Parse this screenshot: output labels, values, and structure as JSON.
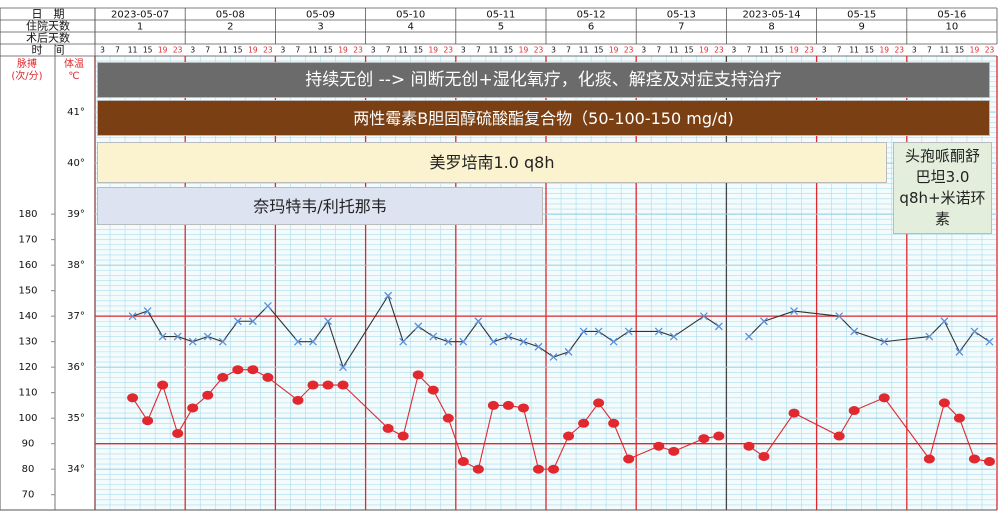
{
  "chart_data": {
    "type": "line",
    "row_labels": [
      "日　期",
      "住院天数",
      "术后天数",
      "时　间"
    ],
    "dates": [
      "2023-05-07",
      "05-08",
      "05-09",
      "05-10",
      "05-11",
      "05-12",
      "05-13",
      "2023-05-14",
      "05-15",
      "05-16"
    ],
    "hospital_days": [
      1,
      2,
      3,
      4,
      5,
      6,
      7,
      8,
      9,
      10
    ],
    "hours": [
      "3",
      "7",
      "11",
      "15",
      "19",
      "23"
    ],
    "pulse_label": [
      "脉搏",
      "(次/分)"
    ],
    "temp_label": [
      "体温",
      "℃"
    ],
    "ylim": [
      33.2,
      42.1
    ],
    "yticks": [
      {
        "value": 41,
        "label": "41°"
      },
      {
        "value": 40,
        "label": "40°"
      },
      {
        "value": 39,
        "label": "39°"
      },
      {
        "value": 38,
        "label": "38°"
      },
      {
        "value": 37,
        "label": "37°"
      },
      {
        "value": 36,
        "label": "36°"
      },
      {
        "value": 35,
        "label": "35°"
      },
      {
        "value": 34,
        "label": "34°"
      }
    ],
    "y2lim": [
      64,
      242
    ],
    "y2ticks": [
      180,
      170,
      160,
      150,
      140,
      130,
      120,
      110,
      100,
      90,
      80,
      70
    ],
    "reference_lines": [
      {
        "axis": "y",
        "value": 37,
        "color": "#e0282e"
      },
      {
        "axis": "y2",
        "value": 90,
        "color": "#e0282e"
      }
    ],
    "x": [
      2,
      3,
      4,
      5,
      6,
      7,
      8,
      9,
      10,
      11,
      13,
      14,
      15,
      16,
      19,
      20,
      21,
      22,
      23,
      24,
      25,
      26,
      27,
      28,
      29,
      30,
      31,
      32,
      33,
      34,
      35,
      37,
      38,
      40,
      41,
      null,
      43,
      44,
      46,
      49,
      50,
      52,
      55,
      56,
      57,
      58,
      59
    ],
    "series": [
      {
        "axis": "y",
        "color": "#333333",
        "marker": "cross",
        "marker_color": "#5b8fd6",
        "values": [
          37.0,
          37.1,
          36.6,
          36.6,
          36.5,
          36.6,
          36.5,
          36.9,
          36.9,
          37.2,
          36.5,
          36.5,
          36.9,
          36.0,
          37.4,
          36.5,
          36.8,
          36.6,
          36.5,
          36.5,
          36.9,
          36.5,
          36.6,
          36.5,
          36.4,
          36.2,
          36.3,
          36.7,
          36.7,
          36.5,
          36.7,
          36.7,
          36.6,
          37.0,
          36.8,
          null,
          36.6,
          36.9,
          37.1,
          37.0,
          36.7,
          36.5,
          36.6,
          36.9,
          36.3,
          36.7,
          36.5
        ]
      },
      {
        "axis": "y2",
        "color": "#e0282e",
        "marker": "dot",
        "marker_color": "#e0282e",
        "values": [
          108,
          99,
          113,
          94,
          104,
          109,
          116,
          119,
          119,
          116,
          107,
          113,
          113,
          113,
          96,
          93,
          117,
          111,
          100,
          83,
          80,
          105,
          105,
          104,
          80,
          80,
          93,
          98,
          106,
          98,
          84,
          89,
          87,
          92,
          93,
          null,
          89,
          85,
          102,
          93,
          103,
          108,
          84,
          106,
          100,
          84,
          83
        ]
      }
    ],
    "annotations": [
      {
        "text": "持续无创 --> 间断无创+湿化氧疗，化痰、解痉及对症支持治疗",
        "color": "#6b6b6b",
        "text_color": "#ffffff"
      },
      {
        "text": "两性霉素B胆固醇硫酸酯复合物（50-100-150 mg/d)",
        "color": "#7a3f12",
        "text_color": "#ffffff"
      },
      {
        "text": "美罗培南1.0 q8h",
        "color": "#fbf3cf",
        "text_color": "#222222"
      },
      {
        "text": "奈玛特韦/利托那韦",
        "color": "#dde3f0",
        "text_color": "#222222"
      },
      {
        "text": "头孢哌酮舒巴坦3.0 q8h+米诺环素",
        "color": "#e3efdc",
        "text_color": "#222222"
      }
    ]
  }
}
